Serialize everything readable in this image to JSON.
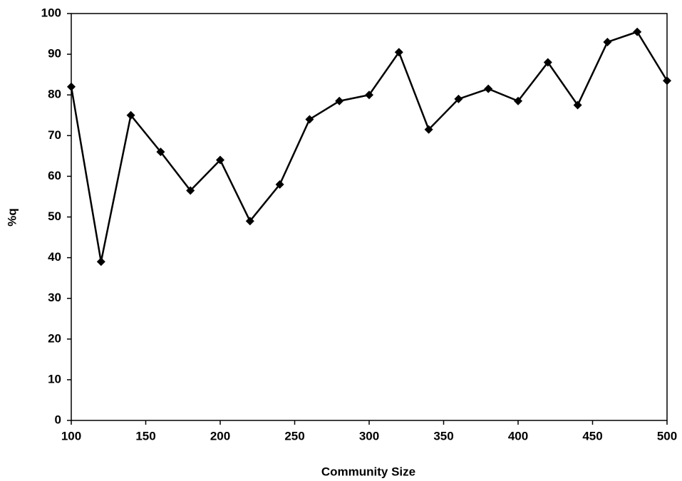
{
  "chart_data": {
    "type": "line",
    "x_label": "Community Size",
    "y_label": "%q",
    "x": [
      100,
      120,
      140,
      160,
      180,
      200,
      220,
      240,
      260,
      280,
      300,
      320,
      340,
      360,
      380,
      400,
      420,
      440,
      460,
      480,
      500
    ],
    "series": [
      {
        "color": "#000000",
        "values": [
          82,
          39,
          75,
          66,
          56.5,
          64,
          49,
          58,
          74,
          78.5,
          80,
          90.5,
          71.5,
          79,
          81.5,
          78.5,
          88,
          77.5,
          93,
          95.5,
          83.5
        ]
      }
    ],
    "xlim": [
      100,
      500
    ],
    "xticks": [
      100,
      150,
      200,
      250,
      300,
      350,
      400,
      450,
      500
    ],
    "ylim": [
      0,
      100
    ],
    "yticks": [
      0,
      10,
      20,
      30,
      40,
      50,
      60,
      70,
      80,
      90,
      100
    ],
    "grid": false
  }
}
